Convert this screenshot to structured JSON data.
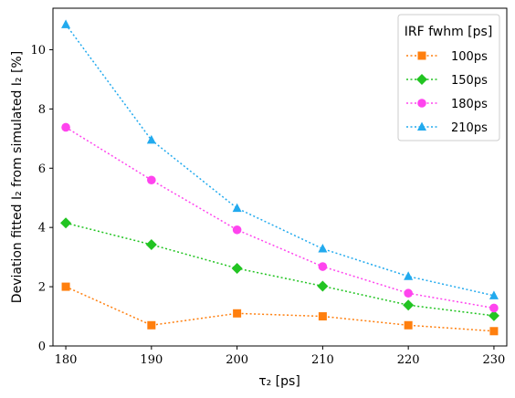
{
  "chart_data": {
    "type": "line",
    "xlabel": "τ₂ [ps]",
    "ylabel": "Deviation fitted I₂ from simulated I₂ [%]",
    "x": [
      180,
      190,
      200,
      210,
      220,
      230
    ],
    "xticks": [
      "180",
      "190",
      "200",
      "210",
      "220",
      "230"
    ],
    "yticks": [
      "0",
      "2",
      "4",
      "6",
      "8",
      "10"
    ],
    "xlim": [
      178.5,
      231.5
    ],
    "ylim": [
      0,
      11.4
    ],
    "grid": false,
    "legend": {
      "title": "IRF fwhm [ps]",
      "placement": "top-right"
    },
    "series": [
      {
        "name": "100ps",
        "color": "#ff7f0e",
        "marker": "square",
        "values": [
          2.0,
          0.7,
          1.1,
          1.0,
          0.7,
          0.5
        ]
      },
      {
        "name": "150ps",
        "color": "#22c422",
        "marker": "diamond",
        "values": [
          4.15,
          3.42,
          2.62,
          2.02,
          1.38,
          1.02
        ]
      },
      {
        "name": "180ps",
        "color": "#ff44ee",
        "marker": "circle",
        "values": [
          7.38,
          5.6,
          3.92,
          2.68,
          1.78,
          1.28
        ]
      },
      {
        "name": "210ps",
        "color": "#22aaee",
        "marker": "triangle",
        "values": [
          10.85,
          6.95,
          4.65,
          3.28,
          2.35,
          1.7
        ]
      }
    ]
  }
}
